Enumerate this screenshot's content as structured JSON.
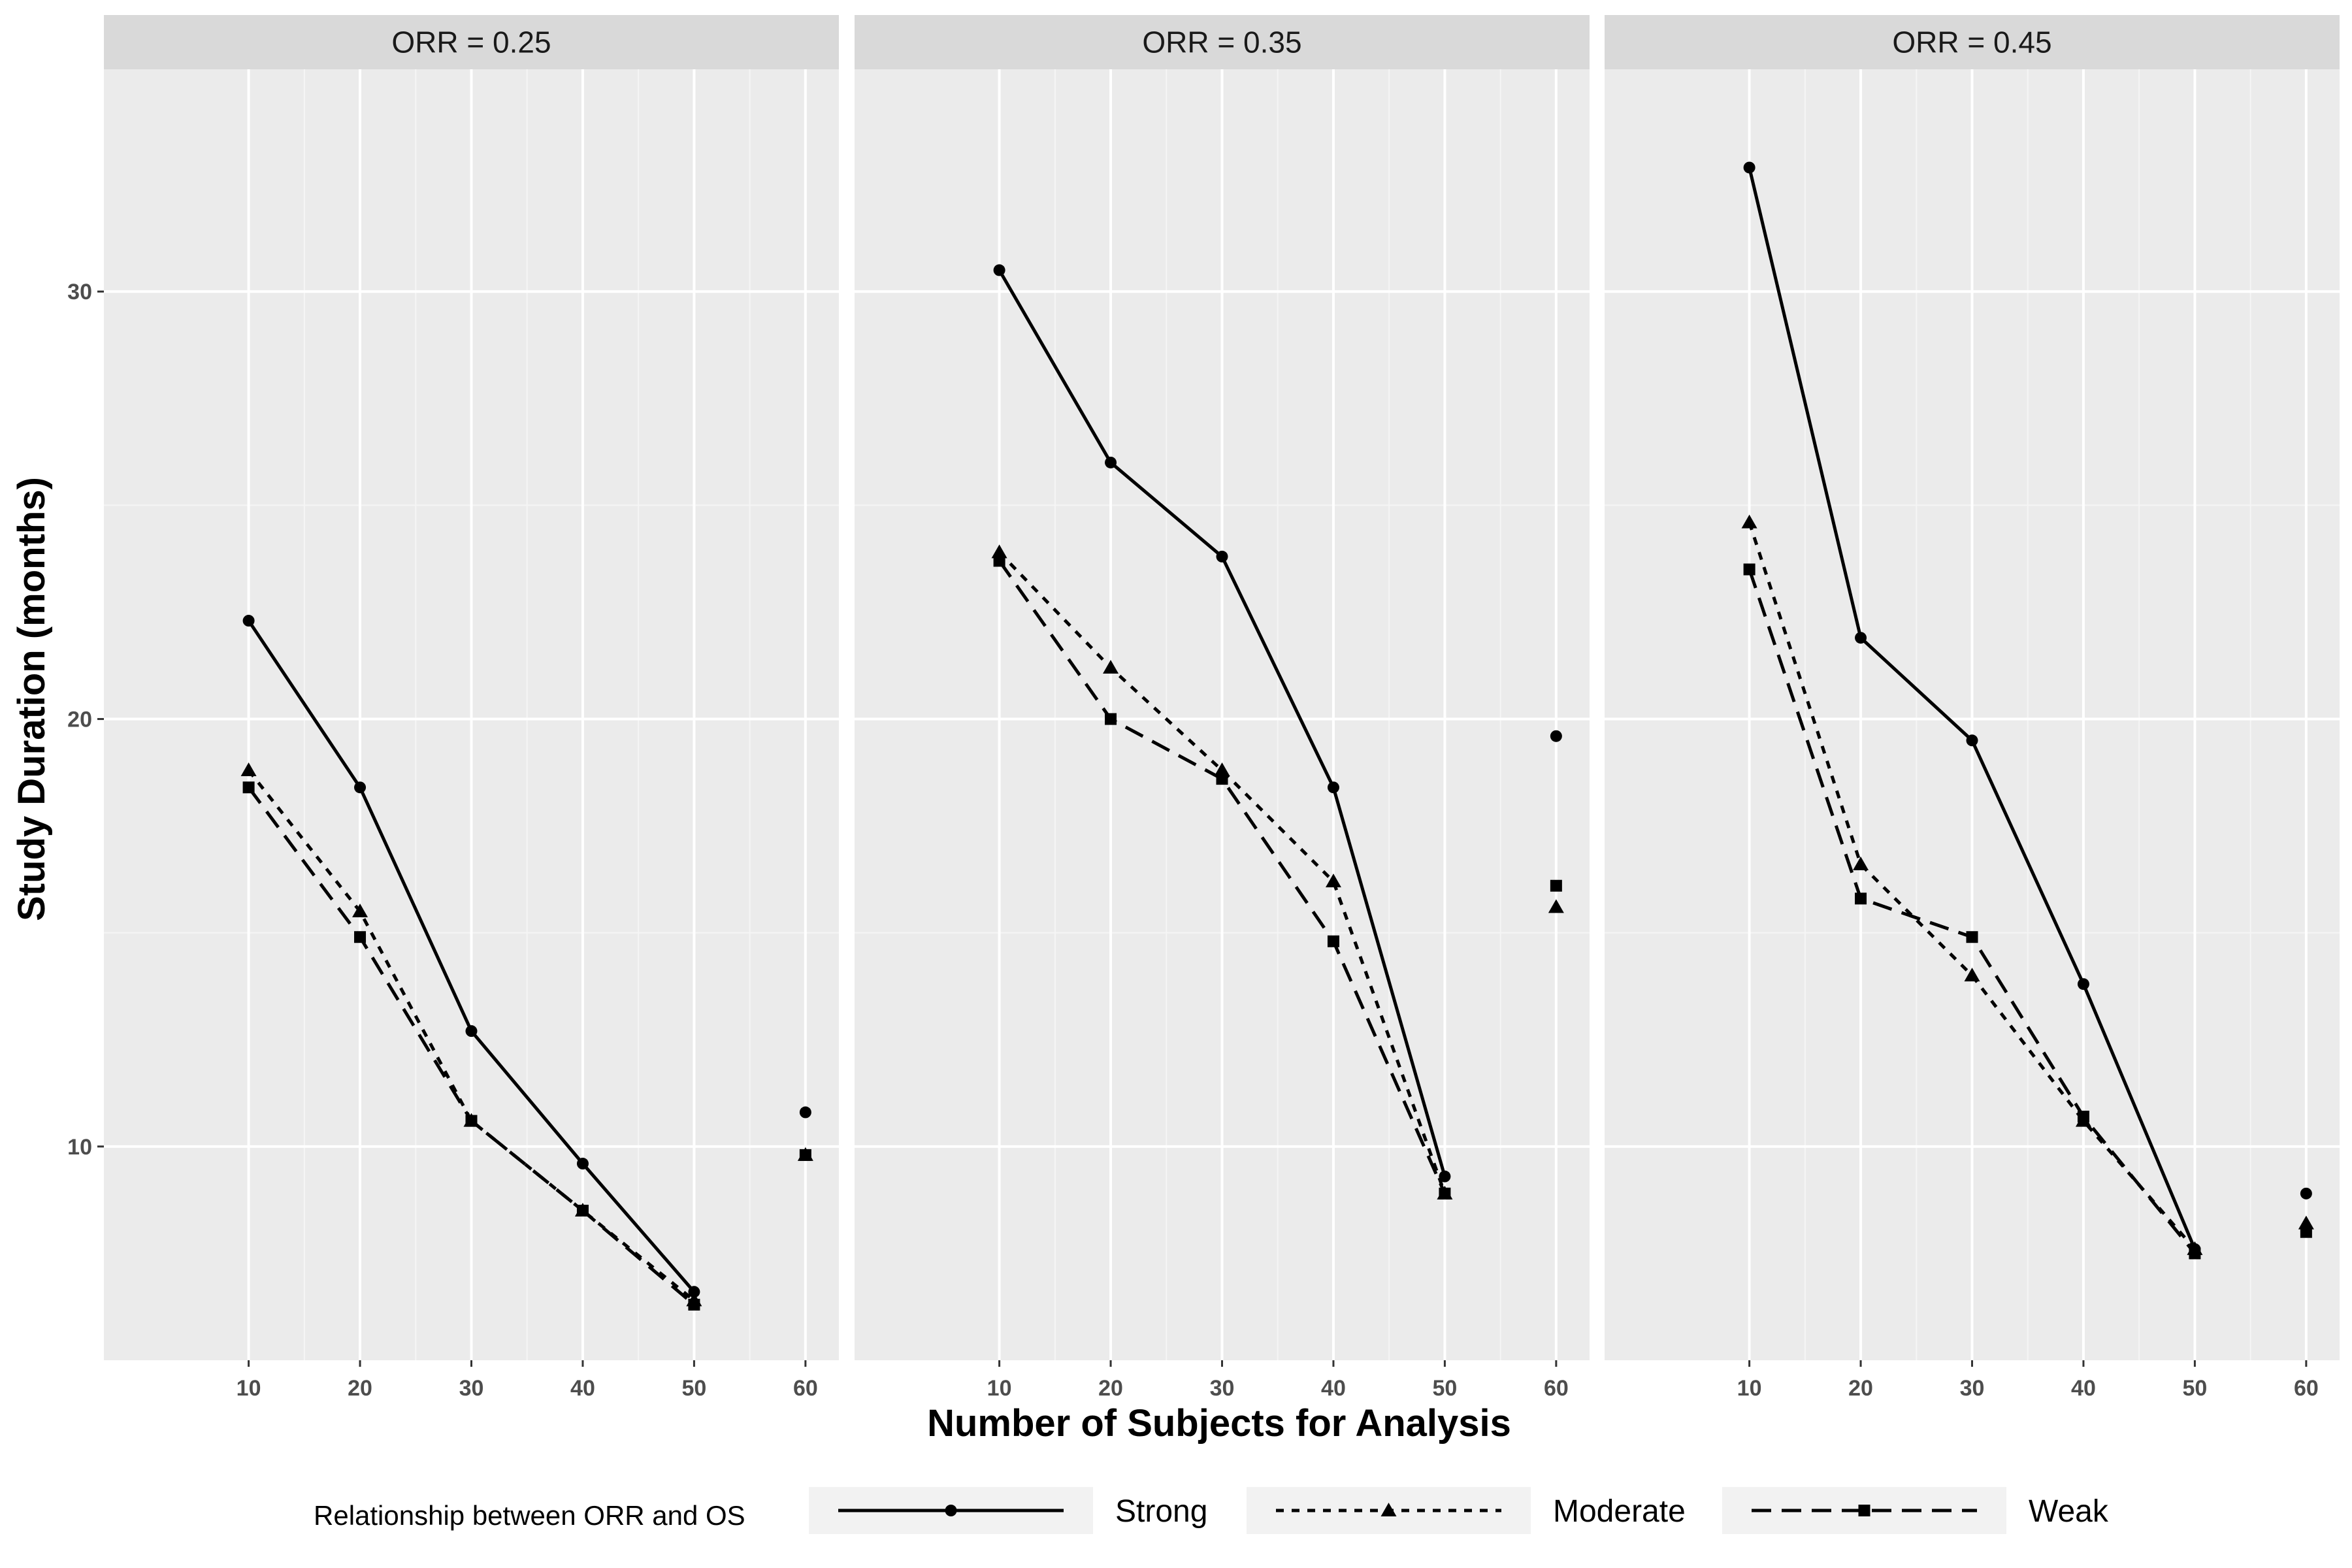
{
  "chart_data": {
    "type": "line",
    "xlabel": "Number of Subjects for Analysis",
    "ylabel": "Study Duration (months)",
    "x_ticks": [
      10,
      20,
      30,
      40,
      50,
      60
    ],
    "y_ticks": [
      10,
      20,
      30
    ],
    "xlim": [
      -3,
      63
    ],
    "ylim": [
      5,
      35.2
    ],
    "grid": true,
    "legend": {
      "title": "Relationship between ORR and OS",
      "placement": "bottom",
      "entries": [
        {
          "name": "Strong",
          "linetype": "solid",
          "marker": "circle"
        },
        {
          "name": "Moderate",
          "linetype": "dotted",
          "marker": "triangle"
        },
        {
          "name": "Weak",
          "linetype": "dashed",
          "marker": "square"
        }
      ]
    },
    "panels": [
      {
        "label": "ORR = 0.25",
        "series": [
          {
            "name": "Strong",
            "x": [
              10,
              20,
              30,
              40,
              50
            ],
            "y": [
              22.3,
              18.4,
              12.7,
              9.6,
              6.6
            ],
            "standalone": {
              "x": 60,
              "y": 10.8
            }
          },
          {
            "name": "Moderate",
            "x": [
              10,
              20,
              30,
              40,
              50
            ],
            "y": [
              18.8,
              15.5,
              10.6,
              8.5,
              6.4
            ],
            "standalone": {
              "x": 60,
              "y": 9.8
            }
          },
          {
            "name": "Weak",
            "x": [
              10,
              20,
              30,
              40,
              50
            ],
            "y": [
              18.4,
              14.9,
              10.6,
              8.5,
              6.3
            ],
            "standalone": {
              "x": 60,
              "y": 9.8
            }
          }
        ]
      },
      {
        "label": "ORR = 0.35",
        "series": [
          {
            "name": "Strong",
            "x": [
              10,
              20,
              30,
              40,
              50
            ],
            "y": [
              30.5,
              26.0,
              23.8,
              18.4,
              9.3
            ],
            "standalone": {
              "x": 60,
              "y": 19.6
            }
          },
          {
            "name": "Moderate",
            "x": [
              10,
              20,
              30,
              40,
              50
            ],
            "y": [
              23.9,
              21.2,
              18.8,
              16.2,
              8.9
            ],
            "standalone": {
              "x": 60,
              "y": 15.6
            }
          },
          {
            "name": "Weak",
            "x": [
              10,
              20,
              30,
              40,
              50
            ],
            "y": [
              23.7,
              20.0,
              18.6,
              14.8,
              8.9
            ],
            "standalone": {
              "x": 60,
              "y": 16.1
            }
          }
        ]
      },
      {
        "label": "ORR = 0.45",
        "series": [
          {
            "name": "Strong",
            "x": [
              10,
              20,
              30,
              40,
              50
            ],
            "y": [
              32.9,
              21.9,
              19.5,
              13.8,
              7.6
            ],
            "standalone": {
              "x": 60,
              "y": 8.9
            }
          },
          {
            "name": "Moderate",
            "x": [
              10,
              20,
              30,
              40,
              50
            ],
            "y": [
              24.6,
              16.6,
              14.0,
              10.6,
              7.6
            ],
            "standalone": {
              "x": 60,
              "y": 8.2
            }
          },
          {
            "name": "Weak",
            "x": [
              10,
              20,
              30,
              40,
              50
            ],
            "y": [
              23.5,
              15.8,
              14.9,
              10.7,
              7.5
            ],
            "standalone": {
              "x": 60,
              "y": 8.0
            }
          }
        ]
      }
    ]
  }
}
